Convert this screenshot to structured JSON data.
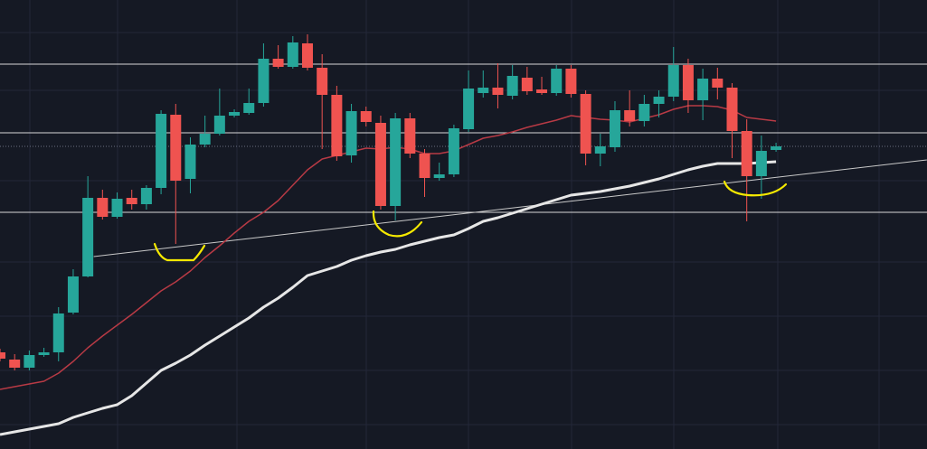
{
  "chart_data": {
    "type": "candlestick",
    "up_color": "#26a69a",
    "down_color": "#ef5350",
    "background": "#151924",
    "ylim": [
      0,
      497
    ],
    "ohlc": [
      [
        107,
        111,
        97,
        100
      ],
      [
        99,
        105,
        87,
        90
      ],
      [
        90,
        109,
        87,
        104
      ],
      [
        104,
        112,
        102,
        107
      ],
      [
        107,
        157,
        97,
        150
      ],
      [
        151,
        199,
        149,
        191
      ],
      [
        191,
        302,
        190,
        278
      ],
      [
        278,
        287,
        254,
        257
      ],
      [
        257,
        284,
        255,
        277
      ],
      [
        278,
        287,
        265,
        271
      ],
      [
        271,
        292,
        265,
        289
      ],
      [
        289,
        375,
        282,
        371
      ],
      [
        370,
        382,
        227,
        297
      ],
      [
        299,
        345,
        283,
        337
      ],
      [
        337,
        369,
        334,
        349
      ],
      [
        349,
        399,
        347,
        369
      ],
      [
        369,
        376,
        367,
        373
      ],
      [
        372,
        399,
        370,
        383
      ],
      [
        383,
        449,
        379,
        432
      ],
      [
        432,
        447,
        421,
        423
      ],
      [
        423,
        457,
        421,
        450
      ],
      [
        449,
        459,
        419,
        422
      ],
      [
        422,
        437,
        332,
        392
      ],
      [
        392,
        402,
        319,
        324
      ],
      [
        325,
        382,
        317,
        374
      ],
      [
        374,
        379,
        357,
        362
      ],
      [
        361,
        369,
        265,
        269
      ],
      [
        269,
        372,
        253,
        366
      ],
      [
        366,
        372,
        322,
        327
      ],
      [
        327,
        332,
        279,
        300
      ],
      [
        300,
        317,
        297,
        304
      ],
      [
        304,
        359,
        301,
        355
      ],
      [
        354,
        419,
        351,
        399
      ],
      [
        394,
        419,
        389,
        400
      ],
      [
        400,
        427,
        377,
        392
      ],
      [
        391,
        425,
        387,
        413
      ],
      [
        411,
        423,
        392,
        396
      ],
      [
        398,
        412,
        392,
        394
      ],
      [
        394,
        425,
        391,
        421
      ],
      [
        421,
        425,
        389,
        393
      ],
      [
        393,
        397,
        314,
        327
      ],
      [
        327,
        349,
        313,
        335
      ],
      [
        334,
        385,
        329,
        375
      ],
      [
        375,
        397,
        357,
        363
      ],
      [
        363,
        392,
        357,
        382
      ],
      [
        382,
        397,
        367,
        390
      ],
      [
        390,
        445,
        385,
        425
      ],
      [
        425,
        432,
        372,
        386
      ],
      [
        386,
        421,
        364,
        410
      ],
      [
        410,
        422,
        387,
        400
      ],
      [
        400,
        405,
        322,
        352
      ],
      [
        352,
        365,
        252,
        302
      ],
      [
        302,
        347,
        277,
        330
      ],
      [
        331,
        339,
        329,
        335
      ]
    ],
    "series": [
      {
        "color": "#b83a45",
        "values": [
          66,
          69,
          72,
          75,
          84,
          97,
          112,
          125,
          137,
          149,
          162,
          175,
          185,
          197,
          212,
          225,
          239,
          252,
          262,
          275,
          292,
          309,
          321,
          325,
          329,
          333,
          332,
          334,
          332,
          327,
          327,
          330,
          337,
          344,
          347,
          351,
          356,
          360,
          364,
          369,
          367,
          365,
          364,
          362,
          366,
          370,
          376,
          380,
          380,
          379,
          375,
          367,
          365,
          363
        ]
      },
      {
        "color": "#e6e6e6",
        "values": [
          16,
          19,
          22,
          25,
          28,
          35,
          40,
          45,
          49,
          59,
          73,
          87,
          95,
          104,
          115,
          125,
          135,
          145,
          157,
          167,
          179,
          192,
          197,
          202,
          209,
          214,
          218,
          221,
          226,
          230,
          234,
          237,
          244,
          252,
          256,
          261,
          266,
          271,
          276,
          281,
          283,
          285,
          288,
          291,
          295,
          299,
          304,
          309,
          313,
          316,
          316,
          316,
          317,
          318
        ]
      }
    ],
    "hlines": [
      426,
      350,
      262
    ],
    "price_line": 335,
    "trendline": {
      "x": [
        6.4,
        63.3
      ],
      "values": [
        213,
        320
      ]
    }
  }
}
